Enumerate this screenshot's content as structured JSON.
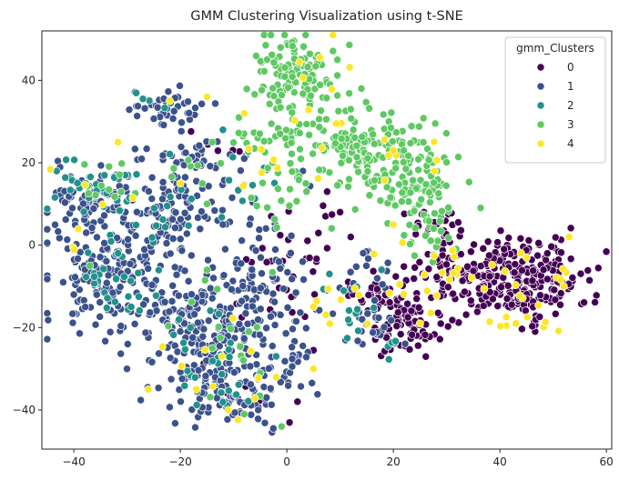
{
  "chart_data": {
    "type": "scatter",
    "title": "GMM Clustering Visualization using t-SNE",
    "xlabel": "",
    "ylabel": "",
    "xlim": [
      -46,
      61
    ],
    "ylim": [
      -49.5,
      52
    ],
    "xticks": [
      -40,
      -20,
      0,
      20,
      40,
      60
    ],
    "yticks": [
      -40,
      -20,
      0,
      20,
      40
    ],
    "grid": false,
    "legend": {
      "title": "gmm_Clusters",
      "placement": "top-right",
      "entries": [
        "0",
        "1",
        "2",
        "3",
        "4"
      ]
    },
    "colors": {
      "0": "#440154",
      "1": "#3b528b",
      "2": "#21918c",
      "3": "#5ec962",
      "4": "#fde725"
    },
    "point_edge_color": "#ffffff",
    "series": [
      {
        "name": "0",
        "regions": [
          {
            "center": [
              44,
              -8
            ],
            "spread": [
              6,
              5
            ],
            "count": 230
          },
          {
            "center": [
              32,
              -7
            ],
            "spread": [
              4,
              4
            ],
            "count": 70
          },
          {
            "center": [
              22,
              -19
            ],
            "spread": [
              4,
              4
            ],
            "count": 90
          },
          {
            "center": [
              17,
              -12
            ],
            "spread": [
              3,
              3
            ],
            "count": 30
          },
          {
            "center": [
              28,
              5
            ],
            "spread": [
              3,
              4
            ],
            "count": 25
          },
          {
            "center": [
              3,
              -5
            ],
            "spread": [
              4,
              8
            ],
            "count": 25
          },
          {
            "center": [
              -3,
              -8
            ],
            "spread": [
              4,
              6
            ],
            "count": 15
          },
          {
            "center": [
              -9,
              -35
            ],
            "spread": [
              4,
              4
            ],
            "count": 10
          },
          {
            "center": [
              -14,
              23
            ],
            "spread": [
              3,
              3
            ],
            "count": 6
          }
        ],
        "points": [
          [
            5,
            -25.5
          ],
          [
            2,
            -38
          ],
          [
            -3,
            -35
          ],
          [
            10,
            8
          ],
          [
            12,
            2
          ]
        ]
      },
      {
        "name": "1",
        "regions": [
          {
            "center": [
              -34,
              -7
            ],
            "spread": [
              6,
              8
            ],
            "count": 160
          },
          {
            "center": [
              -36,
              10
            ],
            "spread": [
              5,
              4
            ],
            "count": 70
          },
          {
            "center": [
              -21,
              8
            ],
            "spread": [
              5,
              5
            ],
            "count": 70
          },
          {
            "center": [
              -17,
              -15
            ],
            "spread": [
              7,
              7
            ],
            "count": 130
          },
          {
            "center": [
              -13,
              -28
            ],
            "spread": [
              6,
              6
            ],
            "count": 110
          },
          {
            "center": [
              -10,
              -38
            ],
            "spread": [
              6,
              3
            ],
            "count": 55
          },
          {
            "center": [
              -4,
              -12
            ],
            "spread": [
              5,
              10
            ],
            "count": 90
          },
          {
            "center": [
              -22,
              33
            ],
            "spread": [
              4,
              2
            ],
            "count": 40
          },
          {
            "center": [
              -17,
              22
            ],
            "spread": [
              5,
              3
            ],
            "count": 35
          },
          {
            "center": [
              -26,
              12
            ],
            "spread": [
              6,
              6
            ],
            "count": 30
          },
          {
            "center": [
              0,
              -28
            ],
            "spread": [
              2,
              2
            ],
            "count": 12
          },
          {
            "center": [
              16,
              -18
            ],
            "spread": [
              3,
              4
            ],
            "count": 25
          },
          {
            "center": [
              14,
              -6
            ],
            "spread": [
              3,
              3
            ],
            "count": 15
          }
        ],
        "points": [
          [
            -12,
            5
          ],
          [
            -7,
            5
          ],
          [
            -40,
            -12
          ],
          [
            -42,
            -9
          ],
          [
            3,
            18
          ],
          [
            -8,
            21
          ]
        ]
      },
      {
        "name": "2",
        "regions": [
          {
            "center": [
              -35,
              14
            ],
            "spread": [
              4,
              4
            ],
            "count": 35
          },
          {
            "center": [
              -33,
              -10
            ],
            "spread": [
              5,
              5
            ],
            "count": 30
          },
          {
            "center": [
              -20,
              10
            ],
            "spread": [
              5,
              5
            ],
            "count": 15
          },
          {
            "center": [
              -15,
              -25
            ],
            "spread": [
              5,
              6
            ],
            "count": 20
          },
          {
            "center": [
              -11,
              -38
            ],
            "spread": [
              4,
              3
            ],
            "count": 12
          },
          {
            "center": [
              14,
              -15
            ],
            "spread": [
              4,
              5
            ],
            "count": 12
          },
          {
            "center": [
              20,
              -25
            ],
            "spread": [
              2,
              2
            ],
            "count": 6
          },
          {
            "center": [
              -5,
              15
            ],
            "spread": [
              4,
              4
            ],
            "count": 8
          },
          {
            "center": [
              -24,
              34
            ],
            "spread": [
              3,
              2
            ],
            "count": 5
          }
        ],
        "points": [
          [
            -2,
            -27
          ],
          [
            -12,
            28
          ],
          [
            8,
            -7
          ]
        ]
      },
      {
        "name": "3",
        "regions": [
          {
            "center": [
              2,
              42
            ],
            "spread": [
              4,
              4
            ],
            "count": 110
          },
          {
            "center": [
              13,
              23
            ],
            "spread": [
              6,
              5
            ],
            "count": 130
          },
          {
            "center": [
              23,
              17
            ],
            "spread": [
              4,
              6
            ],
            "count": 80
          },
          {
            "center": [
              27,
              8
            ],
            "spread": [
              3,
              6
            ],
            "count": 40
          },
          {
            "center": [
              3,
              28
            ],
            "spread": [
              5,
              4
            ],
            "count": 20
          },
          {
            "center": [
              -5,
              24
            ],
            "spread": [
              4,
              3
            ],
            "count": 15
          },
          {
            "center": [
              -2,
              16
            ],
            "spread": [
              4,
              6
            ],
            "count": 25
          },
          {
            "center": [
              -33,
              14
            ],
            "spread": [
              4,
              3
            ],
            "count": 12
          },
          {
            "center": [
              -13,
              -20
            ],
            "spread": [
              5,
              10
            ],
            "count": 15
          },
          {
            "center": [
              -18,
              18
            ],
            "spread": [
              3,
              3
            ],
            "count": 6
          }
        ],
        "points": [
          [
            14,
            38
          ],
          [
            12,
            33
          ],
          [
            -14,
            25
          ],
          [
            -9,
            31
          ],
          [
            -15,
            10
          ],
          [
            -37,
            -5
          ],
          [
            -15,
            -6
          ],
          [
            -14,
            -25
          ],
          [
            -8,
            -41
          ],
          [
            -5,
            -31
          ],
          [
            -1,
            -44
          ]
        ]
      },
      {
        "name": "4",
        "regions": [
          {
            "center": [
              45,
              -12
            ],
            "spread": [
              7,
              7
            ],
            "count": 22
          },
          {
            "center": [
              28,
              -8
            ],
            "spread": [
              5,
              6
            ],
            "count": 15
          },
          {
            "center": [
              14,
              -15
            ],
            "spread": [
              5,
              5
            ],
            "count": 10
          },
          {
            "center": [
              7,
              39
            ],
            "spread": [
              7,
              7
            ],
            "count": 12
          },
          {
            "center": [
              18,
              20
            ],
            "spread": [
              6,
              5
            ],
            "count": 10
          },
          {
            "center": [
              -33,
              10
            ],
            "spread": [
              5,
              8
            ],
            "count": 8
          },
          {
            "center": [
              -13,
              -25
            ],
            "spread": [
              6,
              9
            ],
            "count": 10
          },
          {
            "center": [
              -3,
              14
            ],
            "spread": [
              4,
              6
            ],
            "count": 6
          }
        ],
        "points": [
          [
            -22,
            35
          ],
          [
            -8,
            32
          ],
          [
            -15,
            36
          ],
          [
            5,
            -30
          ],
          [
            -2,
            -32
          ],
          [
            -20,
            15
          ],
          [
            -11,
            -40
          ],
          [
            5,
            -15
          ],
          [
            25,
            -19
          ],
          [
            53,
            2
          ],
          [
            52,
            -10
          ],
          [
            43,
            -19
          ],
          [
            20,
            5
          ],
          [
            -26,
            -35
          ],
          [
            -17,
            -35
          ]
        ]
      }
    ]
  }
}
